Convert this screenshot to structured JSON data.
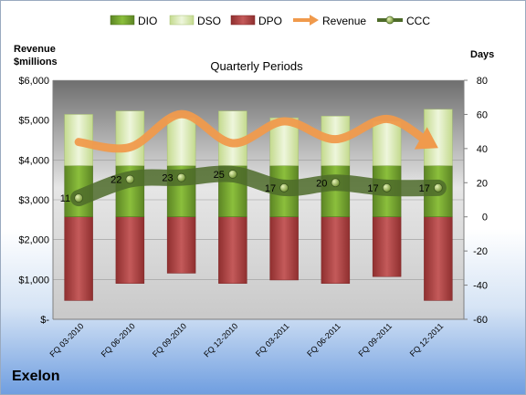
{
  "company": "Exelon",
  "chart_data": {
    "type": "bar",
    "title": "Quarterly Periods",
    "ylabel_left": "Revenue\n$millions",
    "ylabel_right": "Days",
    "categories": [
      "FQ 03-2010",
      "FQ 06-2010",
      "FQ 09-2010",
      "FQ 12-2010",
      "FQ 03-2011",
      "FQ 06-2011",
      "FQ 09-2011",
      "FQ 12-2011"
    ],
    "left_axis": {
      "min": 0,
      "max": 6000,
      "ticks": [
        0,
        1000,
        2000,
        3000,
        4000,
        5000,
        6000
      ],
      "tick_labels": [
        "$-",
        "$1,000",
        "$2,000",
        "$3,000",
        "$4,000",
        "$5,000",
        "$6,000"
      ]
    },
    "right_axis": {
      "min": -60,
      "max": 80,
      "ticks": [
        -60,
        -40,
        -20,
        0,
        20,
        40,
        60,
        80
      ],
      "tick_labels": [
        "-60",
        "-40",
        "-20",
        "0",
        "20",
        "40",
        "60",
        "80"
      ]
    },
    "legend": {
      "position": "top",
      "items": [
        {
          "name": "DIO",
          "color": "#77a033",
          "kind": "bar"
        },
        {
          "name": "DSO",
          "color": "#d7e8b0",
          "kind": "bar"
        },
        {
          "name": "DPO",
          "color": "#b04a4a",
          "kind": "bar"
        },
        {
          "name": "Revenue",
          "color": "#f09a4c",
          "kind": "arrow"
        },
        {
          "name": "CCC",
          "color": "#4e6b2a",
          "kind": "line-marker"
        }
      ]
    },
    "series": [
      {
        "name": "DIO",
        "axis": "right",
        "values": [
          30,
          30,
          30,
          30,
          30,
          30,
          30,
          30
        ]
      },
      {
        "name": "DSO",
        "axis": "right",
        "values": [
          30,
          32,
          28,
          32,
          28,
          29,
          26,
          33
        ]
      },
      {
        "name": "DPO",
        "axis": "right",
        "values": [
          -49,
          -39,
          -33,
          -39,
          -37,
          -39,
          -35,
          -49
        ]
      },
      {
        "name": "Revenue",
        "axis": "left",
        "values": [
          4450,
          4320,
          5150,
          4420,
          4970,
          4520,
          5030,
          4300
        ]
      },
      {
        "name": "CCC",
        "axis": "right",
        "values": [
          11,
          22,
          23,
          25,
          17,
          20,
          17,
          17
        ]
      }
    ],
    "data_labels": {
      "CCC": [
        "11",
        "22",
        "23",
        "25",
        "17",
        "20",
        "17",
        "17"
      ]
    },
    "grid": true,
    "colors": {
      "plot_bg_top": "#707070",
      "plot_bg_mid": "#e8e8e8",
      "ccc_band": "#4e6b2a"
    }
  }
}
